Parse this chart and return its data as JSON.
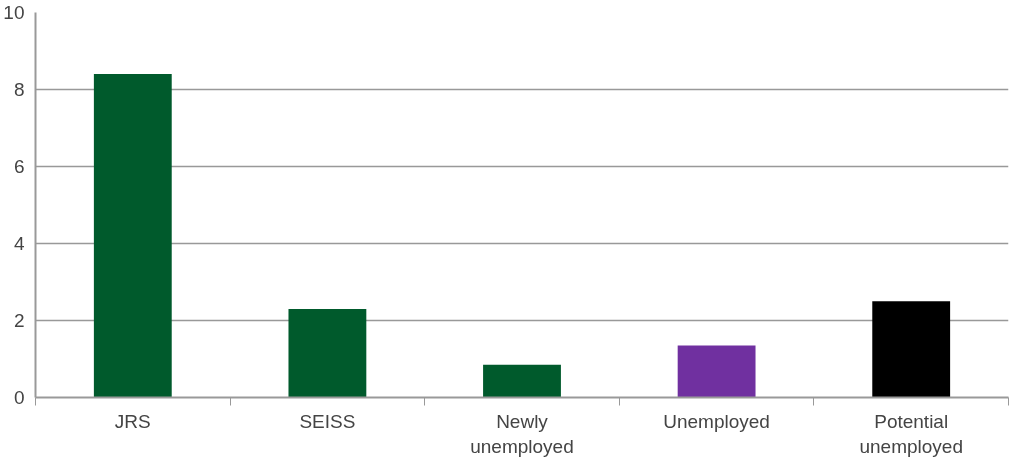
{
  "chart_data": {
    "type": "bar",
    "categories": [
      "JRS",
      "SEISS",
      "Newly unemployed",
      "Unemployed",
      "Potential unemployed"
    ],
    "values": [
      8.4,
      2.3,
      0.85,
      1.35,
      2.5
    ],
    "colors": [
      "#005a2c",
      "#005a2c",
      "#005a2c",
      "#7030a0",
      "#000000"
    ],
    "ylim": [
      0,
      10
    ],
    "yticks": [
      0,
      2,
      4,
      6,
      8,
      10
    ],
    "grid": "y"
  }
}
